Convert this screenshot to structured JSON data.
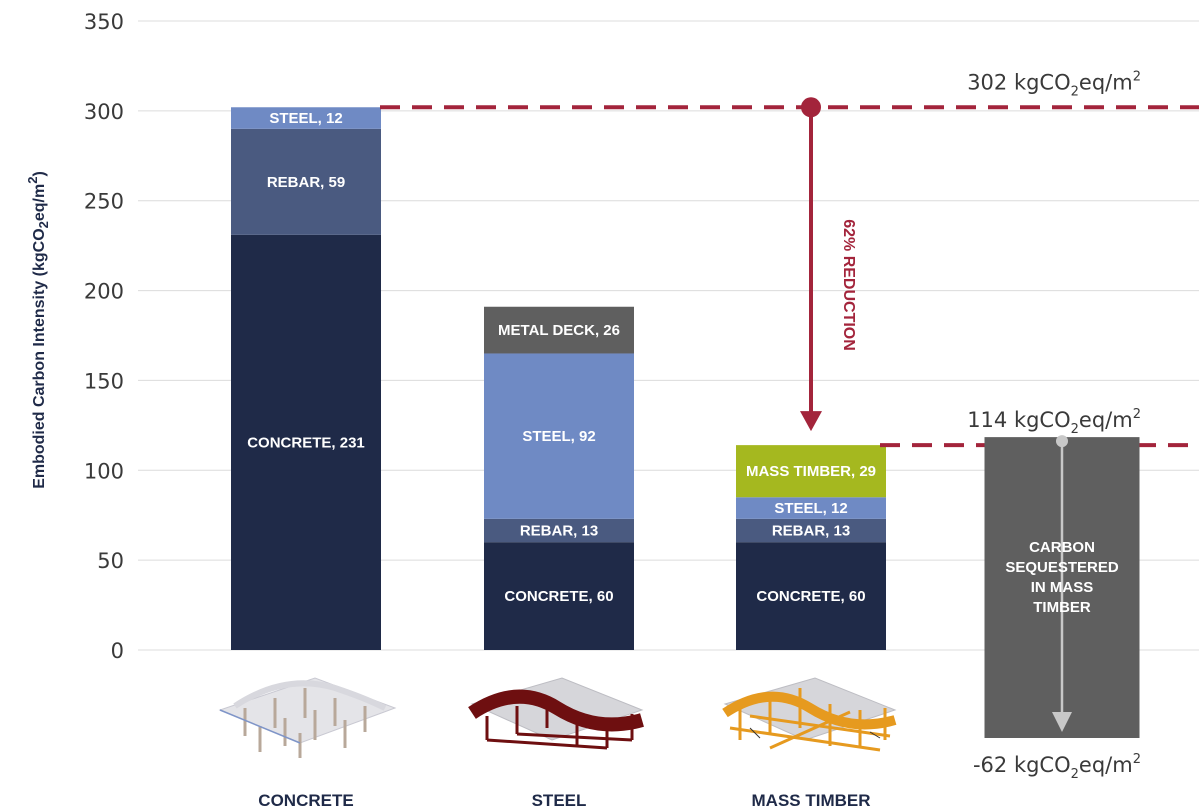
{
  "chart_data": {
    "type": "bar",
    "stacked": true,
    "ylabel": "Embodied Carbon Intensity (kgCO2eq/m2)",
    "ylabel_parts": {
      "main": "Embodied Carbon Intensity (kgCO",
      "sub": "2",
      "mid": "eq/m",
      "sup": "2",
      "end": ")"
    },
    "ylim": [
      0,
      350
    ],
    "yticks": [
      0,
      50,
      100,
      150,
      200,
      250,
      300,
      350
    ],
    "grid": true,
    "categories": [
      "CONCRETE",
      "STEEL",
      "MASS TIMBER"
    ],
    "stacks": [
      {
        "category": "CONCRETE",
        "segments": [
          {
            "name": "CONCRETE",
            "value": 231,
            "label": "CONCRETE, 231",
            "color": "#1f2a48"
          },
          {
            "name": "REBAR",
            "value": 59,
            "label": "REBAR, 59",
            "color": "#4a5a80"
          },
          {
            "name": "STEEL",
            "value": 12,
            "label": "STEEL, 12",
            "color": "#6f8ac4"
          }
        ]
      },
      {
        "category": "STEEL",
        "segments": [
          {
            "name": "CONCRETE",
            "value": 60,
            "label": "CONCRETE, 60",
            "color": "#1f2a48"
          },
          {
            "name": "REBAR",
            "value": 13,
            "label": "REBAR, 13",
            "color": "#4a5a80"
          },
          {
            "name": "STEEL",
            "value": 92,
            "label": "STEEL, 92",
            "color": "#6f8ac4"
          },
          {
            "name": "METAL DECK",
            "value": 26,
            "label": "METAL DECK, 26",
            "color": "#5f5f5f"
          }
        ]
      },
      {
        "category": "MASS TIMBER",
        "segments": [
          {
            "name": "CONCRETE",
            "value": 60,
            "label": "CONCRETE, 60",
            "color": "#1f2a48"
          },
          {
            "name": "REBAR",
            "value": 13,
            "label": "REBAR, 13",
            "color": "#4a5a80"
          },
          {
            "name": "STEEL",
            "value": 12,
            "label": "STEEL, 12",
            "color": "#6f8ac4"
          },
          {
            "name": "MASS TIMBER",
            "value": 29,
            "label": "MASS TIMBER, 29",
            "color": "#a5b81f"
          }
        ]
      }
    ],
    "sequestration": {
      "value": -62,
      "from": 114,
      "label_lines": [
        "CARBON",
        "SEQUESTERED",
        "IN MASS",
        "TIMBER"
      ],
      "color": "#5f5f5f"
    },
    "reference_lines": [
      {
        "value": 302,
        "label_pre": "302 kgCO",
        "label_sub": "2",
        "label_mid": "eq/m",
        "label_sup": "2",
        "color": "#a3243b"
      },
      {
        "value": 114,
        "label_pre": "114 kgCO",
        "label_sub": "2",
        "label_mid": "eq/m",
        "label_sup": "2",
        "color": "#a3243b"
      }
    ],
    "sequestration_end_label": {
      "pre": "-62 kgCO",
      "sub": "2",
      "mid": "eq/m",
      "sup": "2"
    },
    "reduction_label": "62% REDUCTION",
    "accent_color": "#a3243b"
  }
}
